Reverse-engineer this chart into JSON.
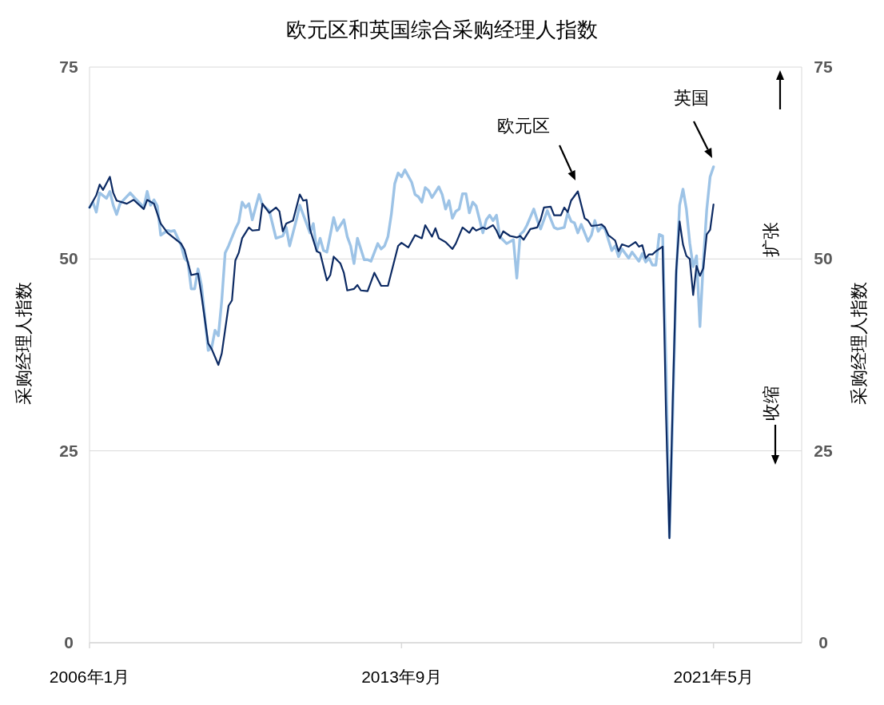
{
  "chart_data": {
    "type": "line",
    "title": "欧元区和英国综合采购经理人指数",
    "ylabel": "采购经理人指数",
    "y2label": "采购经理人指数",
    "xlim": [
      "2006-01",
      "2023-07"
    ],
    "xticks": [
      {
        "value": "2006-01",
        "label": "2006年1月"
      },
      {
        "value": "2013-09",
        "label": "2013年9月"
      },
      {
        "value": "2021-05",
        "label": "2021年5月"
      }
    ],
    "ylim": [
      0,
      75
    ],
    "yticks": [
      0,
      25,
      50,
      75
    ],
    "y2lim": [
      0,
      75
    ],
    "y2ticks": [
      0,
      25,
      50,
      75
    ],
    "grid": "y",
    "annotations": [
      "欧元区",
      "英国",
      "扩张",
      "收缩"
    ],
    "series": [
      {
        "color": "#0c2a63",
        "x": [
          "2006-01",
          "2006-03",
          "2006-04",
          "2006-05",
          "2006-07",
          "2006-08",
          "2006-09",
          "2006-12",
          "2007-02",
          "2007-05",
          "2007-06",
          "2007-08",
          "2007-10",
          "2007-12",
          "2008-02",
          "2008-04",
          "2008-05",
          "2008-07",
          "2008-09",
          "2008-10",
          "2008-12",
          "2009-01",
          "2009-03",
          "2009-04",
          "2009-06",
          "2009-07",
          "2009-08",
          "2009-09",
          "2009-10",
          "2009-12",
          "2010-01",
          "2010-03",
          "2010-04",
          "2010-06",
          "2010-08",
          "2010-09",
          "2010-10",
          "2010-11",
          "2011-01",
          "2011-03",
          "2011-04",
          "2011-05",
          "2011-06",
          "2011-08",
          "2011-09",
          "2011-11",
          "2011-12",
          "2012-01",
          "2012-03",
          "2012-04",
          "2012-05",
          "2012-07",
          "2012-08",
          "2012-09",
          "2012-11",
          "2013-01",
          "2013-03",
          "2013-05",
          "2013-08",
          "2013-09",
          "2013-11",
          "2014-01",
          "2014-03",
          "2014-04",
          "2014-06",
          "2014-07",
          "2014-08",
          "2014-10",
          "2014-12",
          "2015-01",
          "2015-03",
          "2015-05",
          "2015-06",
          "2015-07",
          "2015-09",
          "2015-10",
          "2015-12",
          "2016-01",
          "2016-02",
          "2016-03",
          "2016-05",
          "2016-07",
          "2016-08",
          "2016-09",
          "2016-11",
          "2017-01",
          "2017-02",
          "2017-03",
          "2017-05",
          "2017-06",
          "2017-08",
          "2017-09",
          "2017-10",
          "2017-11",
          "2018-01",
          "2018-03",
          "2018-04",
          "2018-05",
          "2018-07",
          "2018-08",
          "2018-09",
          "2018-10",
          "2018-12",
          "2019-01",
          "2019-02",
          "2019-04",
          "2019-06",
          "2019-07",
          "2019-08",
          "2019-09",
          "2019-10",
          "2019-11",
          "2019-12",
          "2020-02",
          "2020-03",
          "2020-04",
          "2020-05",
          "2020-06",
          "2020-07",
          "2020-08",
          "2020-09",
          "2020-10",
          "2020-11",
          "2020-12",
          "2021-01",
          "2021-02",
          "2021-03",
          "2021-04",
          "2021-05"
        ],
        "values": [
          56.7,
          58.3,
          59.7,
          59.0,
          60.7,
          58.6,
          57.6,
          57.2,
          57.7,
          56.5,
          57.7,
          57.2,
          54.6,
          53.4,
          52.7,
          52.0,
          51.2,
          47.9,
          48.1,
          45.3,
          39.0,
          38.3,
          36.2,
          37.7,
          43.9,
          44.6,
          49.8,
          50.8,
          52.7,
          54.1,
          53.7,
          53.8,
          57.2,
          56.0,
          56.7,
          56.2,
          53.6,
          54.6,
          55.0,
          58.4,
          57.6,
          57.7,
          53.9,
          51.0,
          50.8,
          47.2,
          47.9,
          50.3,
          49.4,
          48.2,
          45.9,
          46.1,
          46.6,
          45.9,
          45.8,
          48.2,
          46.5,
          46.5,
          51.7,
          52.1,
          51.5,
          53.1,
          52.7,
          54.4,
          52.9,
          54.0,
          52.7,
          52.2,
          51.3,
          52.0,
          54.1,
          53.4,
          54.1,
          53.7,
          54.1,
          53.9,
          54.4,
          53.7,
          52.7,
          53.6,
          53.0,
          52.8,
          53.0,
          52.5,
          53.9,
          54.1,
          55.1,
          56.7,
          56.8,
          55.7,
          55.7,
          56.7,
          56.1,
          57.6,
          58.8,
          55.3,
          55.0,
          54.3,
          54.4,
          54.5,
          54.1,
          53.1,
          52.4,
          51.0,
          51.9,
          51.6,
          52.2,
          51.6,
          51.8,
          50.1,
          50.6,
          50.6,
          51.0,
          51.6,
          29.7,
          13.6,
          31.9,
          48.5,
          54.9,
          51.9,
          50.4,
          50.0,
          45.3,
          49.1,
          47.8,
          48.8,
          53.2,
          53.8,
          57.1
        ]
      },
      {
        "color": "#9dc3e6",
        "x": [
          "2006-01",
          "2006-02",
          "2006-03",
          "2006-04",
          "2006-06",
          "2006-07",
          "2006-08",
          "2006-09",
          "2006-10",
          "2007-01",
          "2007-02",
          "2007-04",
          "2007-05",
          "2007-06",
          "2007-07",
          "2007-08",
          "2007-09",
          "2007-10",
          "2007-12",
          "2008-01",
          "2008-02",
          "2008-04",
          "2008-05",
          "2008-06",
          "2008-07",
          "2008-08",
          "2008-09",
          "2008-10",
          "2008-12",
          "2009-01",
          "2009-02",
          "2009-03",
          "2009-04",
          "2009-05",
          "2009-06",
          "2009-08",
          "2009-09",
          "2009-10",
          "2009-11",
          "2009-12",
          "2010-01",
          "2010-03",
          "2010-04",
          "2010-06",
          "2010-08",
          "2010-10",
          "2010-11",
          "2010-12",
          "2011-02",
          "2011-03",
          "2011-05",
          "2011-06",
          "2011-07",
          "2011-08",
          "2011-09",
          "2011-10",
          "2011-11",
          "2012-01",
          "2012-02",
          "2012-04",
          "2012-05",
          "2012-06",
          "2012-07",
          "2012-08",
          "2012-10",
          "2012-11",
          "2012-12",
          "2013-02",
          "2013-03",
          "2013-04",
          "2013-05",
          "2013-06",
          "2013-07",
          "2013-08",
          "2013-09",
          "2013-10",
          "2013-12",
          "2014-01",
          "2014-02",
          "2014-03",
          "2014-04",
          "2014-05",
          "2014-06",
          "2014-08",
          "2014-09",
          "2014-10",
          "2014-11",
          "2014-12",
          "2015-01",
          "2015-02",
          "2015-03",
          "2015-04",
          "2015-05",
          "2015-06",
          "2015-07",
          "2015-09",
          "2015-10",
          "2015-11",
          "2015-12",
          "2016-01",
          "2016-02",
          "2016-04",
          "2016-06",
          "2016-07",
          "2016-08",
          "2016-09",
          "2016-10",
          "2016-12",
          "2017-01",
          "2017-02",
          "2017-04",
          "2017-06",
          "2017-07",
          "2017-09",
          "2017-10",
          "2017-11",
          "2017-12",
          "2018-01",
          "2018-02",
          "2018-04",
          "2018-05",
          "2018-06",
          "2018-07",
          "2018-08",
          "2018-09",
          "2018-11",
          "2018-12",
          "2019-01",
          "2019-02",
          "2019-04",
          "2019-05",
          "2019-07",
          "2019-08",
          "2019-09",
          "2019-10",
          "2019-11",
          "2019-12",
          "2020-01",
          "2020-02",
          "2020-03",
          "2020-04",
          "2020-05",
          "2020-06",
          "2020-07",
          "2020-08",
          "2020-09",
          "2020-10",
          "2020-11",
          "2020-12",
          "2021-01",
          "2021-02",
          "2021-03",
          "2021-04",
          "2021-05"
        ],
        "values": [
          56.7,
          57.4,
          56.1,
          58.6,
          57.9,
          58.8,
          57.0,
          55.8,
          57.2,
          58.6,
          58.1,
          57.2,
          56.7,
          58.8,
          57.0,
          57.7,
          56.9,
          53.1,
          53.7,
          53.6,
          53.7,
          51.8,
          50.1,
          49.6,
          46.1,
          46.1,
          48.7,
          46.6,
          38.1,
          38.4,
          40.7,
          40.0,
          44.6,
          50.8,
          51.7,
          53.9,
          54.8,
          57.4,
          56.7,
          57.2,
          55.1,
          58.4,
          57.0,
          56.3,
          52.7,
          53.0,
          54.1,
          51.7,
          55.1,
          57.0,
          54.6,
          53.4,
          54.6,
          51.1,
          52.7,
          51.1,
          50.9,
          55.4,
          53.7,
          55.1,
          52.9,
          51.7,
          49.4,
          52.7,
          49.9,
          49.9,
          49.7,
          52.0,
          51.3,
          51.7,
          52.9,
          55.8,
          59.8,
          61.2,
          60.7,
          61.6,
          60.0,
          58.4,
          58.1,
          57.4,
          59.3,
          58.9,
          58.0,
          59.4,
          58.4,
          56.5,
          57.6,
          55.3,
          56.2,
          56.5,
          58.5,
          58.5,
          56.0,
          57.4,
          56.9,
          53.4,
          55.1,
          55.7,
          55.0,
          55.7,
          52.9,
          52.0,
          52.5,
          47.5,
          53.2,
          53.6,
          54.4,
          56.5,
          55.1,
          53.9,
          56.3,
          54.1,
          53.9,
          54.1,
          56.0,
          54.9,
          54.7,
          53.4,
          54.5,
          52.3,
          53.1,
          55.0,
          53.6,
          54.2,
          53.9,
          51.1,
          51.7,
          50.3,
          51.3,
          50.1,
          50.9,
          49.7,
          50.7,
          49.6,
          50.1,
          49.2,
          49.2,
          53.2,
          53.0,
          36.0,
          13.8,
          30.0,
          47.7,
          57.0,
          59.1,
          56.5,
          52.1,
          49.0,
          50.4,
          41.2,
          49.6,
          56.4,
          60.7,
          62.0
        ]
      }
    ]
  }
}
